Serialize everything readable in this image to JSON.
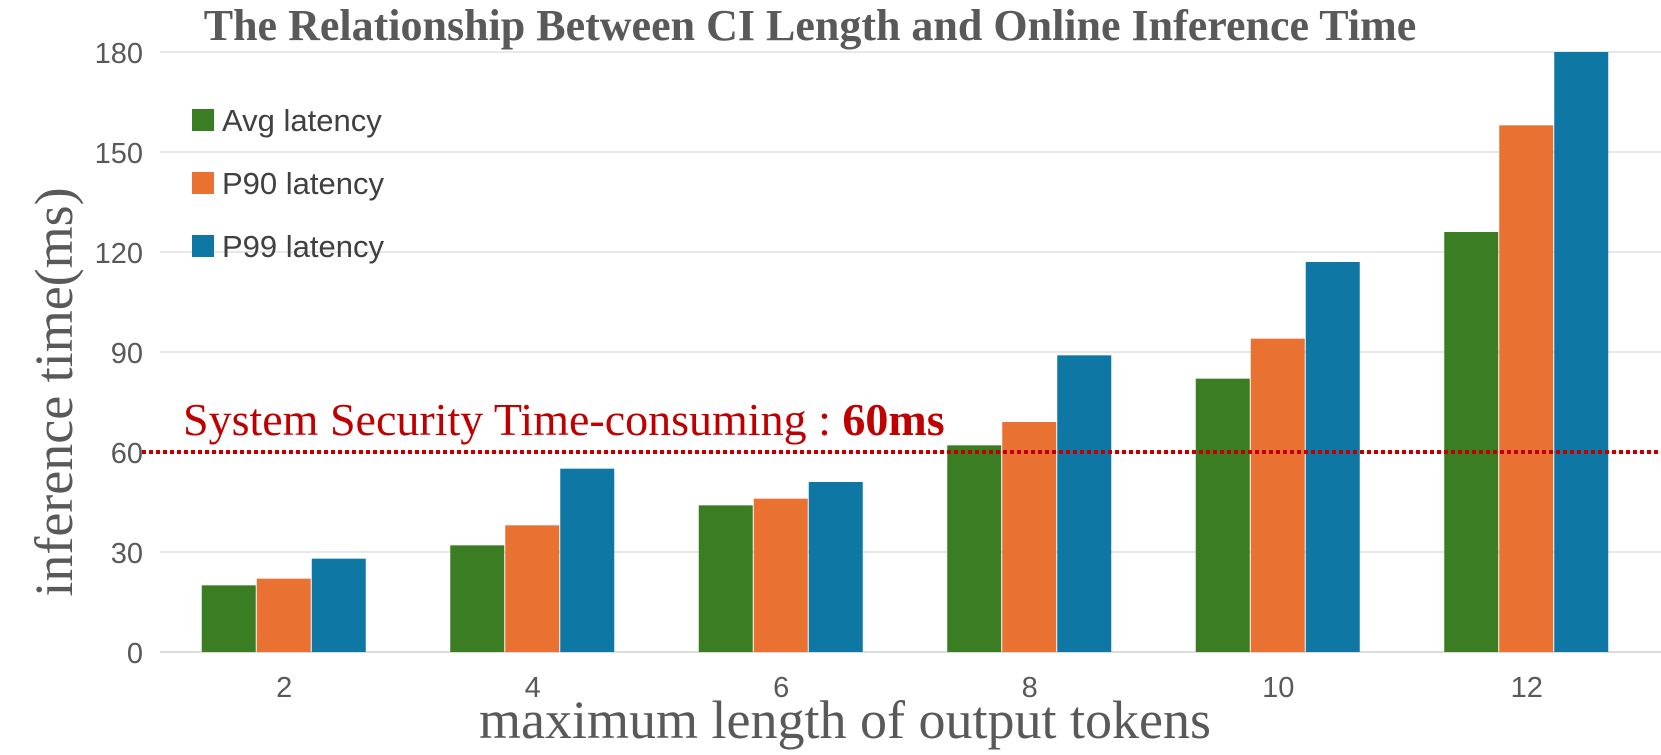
{
  "chart_data": {
    "type": "bar",
    "title": "The Relationship Between CI Length and Online Inference Time",
    "xlabel": "maximum length of output tokens",
    "ylabel": "inference time(ms)",
    "categories": [
      "2",
      "4",
      "6",
      "8",
      "10",
      "12"
    ],
    "series": [
      {
        "name": "Avg latency",
        "color": "#3a7d23",
        "values": [
          20,
          32,
          44,
          62,
          82,
          126
        ]
      },
      {
        "name": "P90 latency",
        "color": "#e97132",
        "values": [
          22,
          38,
          46,
          69,
          94,
          158
        ]
      },
      {
        "name": "P99 latency",
        "color": "#0f77a3",
        "values": [
          28,
          55,
          51,
          89,
          117,
          180
        ]
      }
    ],
    "ylim": [
      0,
      180
    ],
    "yticks": [
      "0",
      "30",
      "60",
      "90",
      "120",
      "150",
      "180"
    ],
    "grid": true,
    "legend": "top-left",
    "threshold": {
      "value": 60,
      "label": "System Security Time-consuming : ",
      "value_label": "60ms",
      "color": "#c00000"
    }
  }
}
